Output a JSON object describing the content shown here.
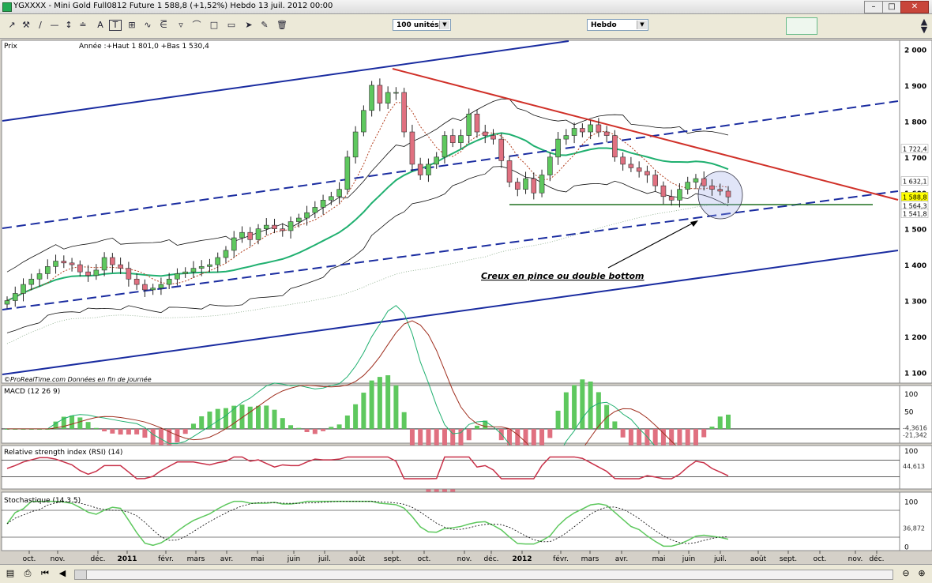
{
  "window": {
    "title": "YGXXXX - Mini Gold Full0812 Future   1 588,8 (+1,52%)   Hebdo  13 juil. 2012 00:00",
    "minimize_label": "–",
    "restore_label": "□",
    "close_label": "✕"
  },
  "toolbar": {
    "units_select": "100 unités",
    "period_select": "Hebdo",
    "tools": [
      "cursor-icon",
      "wrench-icon",
      "line-tool-icon",
      "hline-tool-icon",
      "vline-tool-icon",
      "channel-tool-icon",
      "text-tool-icon",
      "fibonacci-tool-icon",
      "fan-tool-icon",
      "triangle-tool-icon",
      "rectangle-tool-icon",
      "lasso-tool-icon",
      "pointer-fill-icon",
      "brush-icon",
      "trash-icon"
    ]
  },
  "panels": {
    "price": {
      "header": "Prix",
      "info": "Année :+Haut 1 801,0 +Bas 1 530,4",
      "footer": "©ProRealTime.com  Données en fin de journée"
    },
    "macd": {
      "header": "MACD (12 26 9)"
    },
    "rsi": {
      "header": "Relative strength index (RSI) (14)"
    },
    "stoch": {
      "header": "Stochastique (14 3 5)"
    }
  },
  "chart_data": {
    "type": "candlestick",
    "period": "weekly",
    "y_ticks": [
      "2 000",
      "1 900",
      "1 800",
      "1 700",
      "1 600",
      "1 500",
      "1 400",
      "1 300",
      "1 200",
      "1 100"
    ],
    "ylim": [
      1070,
      2010
    ],
    "x_labels": [
      "oct.",
      "nov.",
      "déc.",
      "2011",
      "févr.",
      "mars",
      "avr.",
      "mai",
      "juin",
      "juil.",
      "août",
      "sept.",
      "oct.",
      "nov.",
      "déc.",
      "2012",
      "févr.",
      "mars",
      "avr.",
      "mai",
      "juin",
      "juil.",
      "août",
      "sept.",
      "oct.",
      "nov.",
      "déc."
    ],
    "price_labels": [
      {
        "text": "1 722,4",
        "value": 1722.4,
        "color": "#ffffff"
      },
      {
        "text": "1 632,1",
        "value": 1632.1,
        "color": "#ffffff"
      },
      {
        "text": "1 588,8",
        "value": 1588.8,
        "color": "#ffff00"
      },
      {
        "text": "1 564,3",
        "value": 1564.3,
        "color": "#ffffff"
      },
      {
        "text": "1 541,8",
        "value": 1541.8,
        "color": "#ffffff"
      }
    ],
    "annotation": "Creux en pince ou double bottom",
    "close_path": [
      1300,
      1320,
      1345,
      1360,
      1375,
      1395,
      1410,
      1405,
      1400,
      1380,
      1370,
      1385,
      1420,
      1400,
      1390,
      1360,
      1345,
      1330,
      1335,
      1345,
      1360,
      1375,
      1380,
      1390,
      1395,
      1400,
      1420,
      1440,
      1475,
      1490,
      1470,
      1500,
      1510,
      1500,
      1495,
      1520,
      1530,
      1545,
      1560,
      1580,
      1590,
      1610,
      1700,
      1770,
      1830,
      1900,
      1850,
      1880,
      1880,
      1770,
      1680,
      1650,
      1680,
      1700,
      1760,
      1740,
      1760,
      1820,
      1770,
      1760,
      1750,
      1690,
      1630,
      1610,
      1640,
      1600,
      1650,
      1700,
      1750,
      1760,
      1780,
      1770,
      1790,
      1770,
      1760,
      1700,
      1680,
      1670,
      1660,
      1650,
      1620,
      1590,
      1580,
      1610,
      1630,
      1640,
      1620,
      1610,
      1605,
      1589
    ],
    "macd": {
      "ylim": [
        -40,
        115
      ],
      "ticks": [
        "100",
        "50"
      ],
      "labels": [
        "-4,3616",
        "-21,342"
      ]
    },
    "rsi": {
      "ylim": [
        0,
        100
      ],
      "ticks": [
        "100"
      ],
      "labels": [
        "44,613"
      ]
    },
    "stoch": {
      "ylim": [
        -10,
        110
      ],
      "ticks": [
        "100",
        "0"
      ],
      "labels": [
        "36,872"
      ]
    }
  },
  "colors": {
    "up": "#5ec85e",
    "down": "#e07080",
    "ma_green": "#20b070",
    "channel": "#1a2ca0",
    "trend": "#d03028",
    "support": "#207020"
  }
}
